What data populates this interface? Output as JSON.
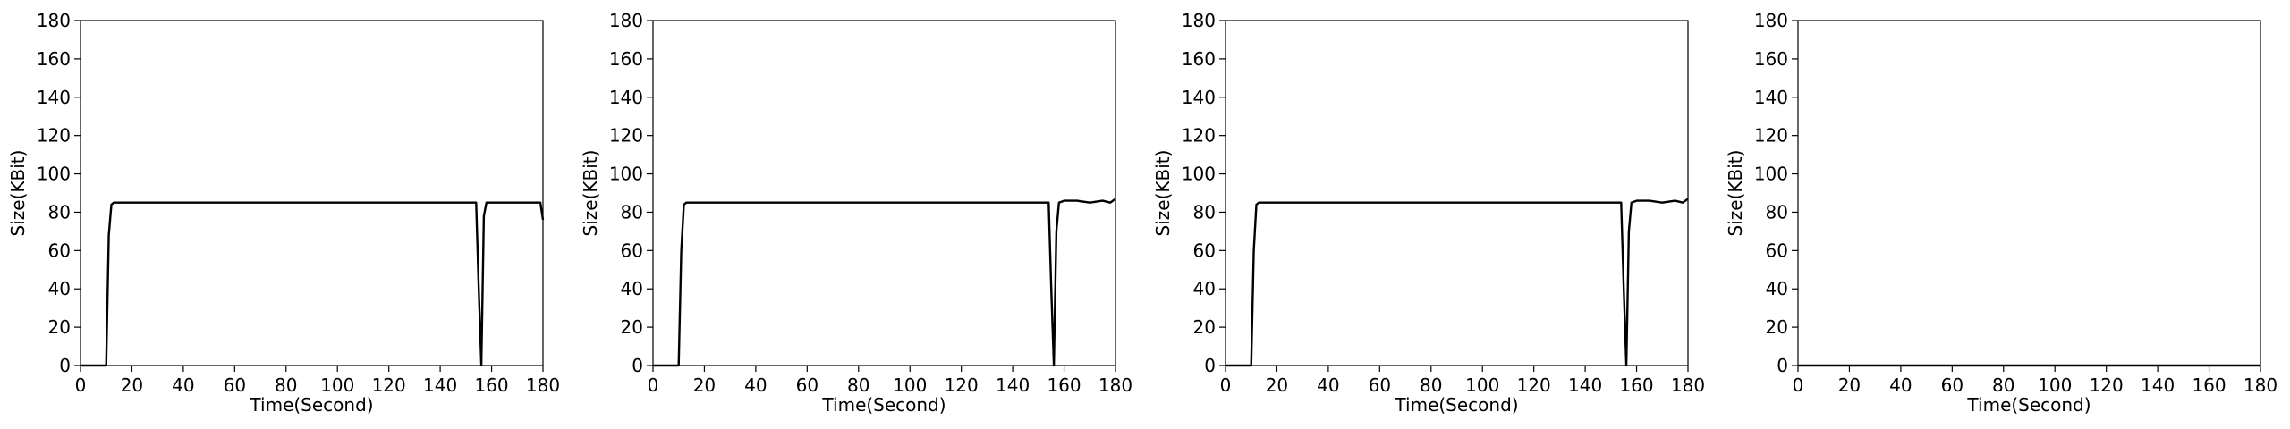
{
  "chart_data": [
    {
      "type": "line",
      "xlabel": "Time(Second)",
      "ylabel": "Size(KBit)",
      "xlim": [
        0,
        180
      ],
      "ylim": [
        0,
        180
      ],
      "xticks": [
        0,
        20,
        40,
        60,
        80,
        100,
        120,
        140,
        160,
        180
      ],
      "yticks": [
        0,
        20,
        40,
        60,
        80,
        100,
        120,
        140,
        160,
        180
      ],
      "grid": false,
      "line_color": "#000000",
      "series": [
        {
          "x": [
            0,
            10,
            11,
            12,
            13,
            20,
            40,
            60,
            80,
            100,
            120,
            140,
            154,
            155,
            156,
            157,
            158,
            170,
            179,
            180
          ],
          "values": [
            0,
            0,
            68,
            84,
            85,
            85,
            85,
            85,
            85,
            85,
            85,
            85,
            85,
            40,
            0,
            78,
            85,
            85,
            85,
            76
          ]
        }
      ]
    },
    {
      "type": "line",
      "xlabel": "Time(Second)",
      "ylabel": "Size(KBit)",
      "xlim": [
        0,
        180
      ],
      "ylim": [
        0,
        180
      ],
      "xticks": [
        0,
        20,
        40,
        60,
        80,
        100,
        120,
        140,
        160,
        180
      ],
      "yticks": [
        0,
        20,
        40,
        60,
        80,
        100,
        120,
        140,
        160,
        180
      ],
      "grid": false,
      "line_color": "#000000",
      "series": [
        {
          "x": [
            0,
            10,
            11,
            12,
            13,
            20,
            40,
            60,
            80,
            100,
            120,
            140,
            154,
            155,
            156,
            157,
            158,
            160,
            165,
            170,
            175,
            178,
            180
          ],
          "values": [
            0,
            0,
            60,
            84,
            85,
            85,
            85,
            85,
            85,
            85,
            85,
            85,
            85,
            40,
            0,
            70,
            85,
            86,
            86,
            85,
            86,
            85,
            87
          ]
        }
      ]
    },
    {
      "type": "line",
      "xlabel": "Time(Second)",
      "ylabel": "Size(KBit)",
      "xlim": [
        0,
        180
      ],
      "ylim": [
        0,
        180
      ],
      "xticks": [
        0,
        20,
        40,
        60,
        80,
        100,
        120,
        140,
        160,
        180
      ],
      "yticks": [
        0,
        20,
        40,
        60,
        80,
        100,
        120,
        140,
        160,
        180
      ],
      "grid": false,
      "line_color": "#000000",
      "series": [
        {
          "x": [
            0,
            10,
            11,
            12,
            13,
            20,
            40,
            60,
            80,
            100,
            120,
            140,
            154,
            155,
            156,
            157,
            158,
            160,
            165,
            170,
            175,
            178,
            180
          ],
          "values": [
            0,
            0,
            60,
            84,
            85,
            85,
            85,
            85,
            85,
            85,
            85,
            85,
            85,
            40,
            0,
            70,
            85,
            86,
            86,
            85,
            86,
            85,
            87
          ]
        }
      ]
    },
    {
      "type": "line",
      "xlabel": "Time(Second)",
      "ylabel": "Size(KBit)",
      "xlim": [
        0,
        180
      ],
      "ylim": [
        0,
        180
      ],
      "xticks": [
        0,
        20,
        40,
        60,
        80,
        100,
        120,
        140,
        160,
        180
      ],
      "yticks": [
        0,
        20,
        40,
        60,
        80,
        100,
        120,
        140,
        160,
        180
      ],
      "grid": false,
      "line_color": "#000000",
      "series": [
        {
          "x": [
            0,
            180
          ],
          "values": [
            0,
            0
          ]
        }
      ]
    }
  ]
}
